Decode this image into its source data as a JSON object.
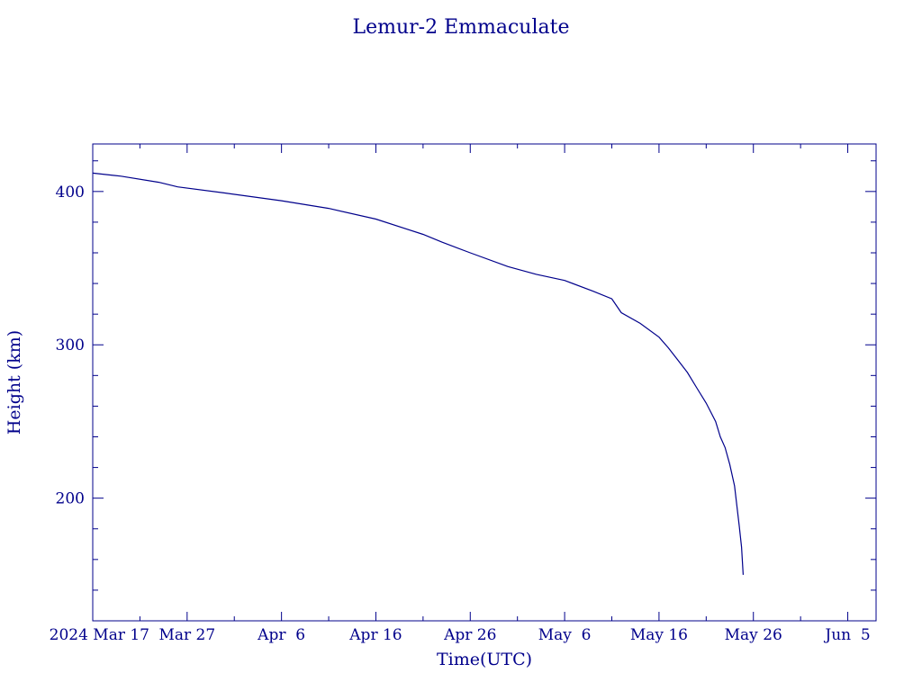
{
  "chart_data": {
    "type": "line",
    "title": "Lemur-2 Emmaculate",
    "xlabel": "Time(UTC)",
    "ylabel": "Height (km)",
    "x_range": [
      "2024-03-17",
      "2024-06-08"
    ],
    "ylim": [
      120,
      431
    ],
    "grid": false,
    "x_ticks": [
      {
        "date": "2024-03-17",
        "label": "2024 Mar 17"
      },
      {
        "date": "2024-03-27",
        "label": "Mar 27"
      },
      {
        "date": "2024-04-06",
        "label": "Apr  6"
      },
      {
        "date": "2024-04-16",
        "label": "Apr 16"
      },
      {
        "date": "2024-04-26",
        "label": "Apr 26"
      },
      {
        "date": "2024-05-06",
        "label": "May  6"
      },
      {
        "date": "2024-05-16",
        "label": "May 16"
      },
      {
        "date": "2024-05-26",
        "label": "May 26"
      },
      {
        "date": "2024-06-05",
        "label": "Jun  5"
      }
    ],
    "y_ticks": [
      {
        "value": 400,
        "label": "400"
      },
      {
        "value": 300,
        "label": "300"
      },
      {
        "value": 200,
        "label": "200"
      }
    ],
    "series": [
      {
        "x": [
          "2024-03-17",
          "2024-03-20",
          "2024-03-24",
          "2024-03-26",
          "2024-03-31",
          "2024-04-06",
          "2024-04-11",
          "2024-04-16",
          "2024-04-21",
          "2024-04-23",
          "2024-04-26",
          "2024-04-30",
          "2024-05-03",
          "2024-05-06",
          "2024-05-09",
          "2024-05-11",
          "2024-05-12",
          "2024-05-14",
          "2024-05-16",
          "2024-05-17",
          "2024-05-18",
          "2024-05-19",
          "2024-05-20",
          "2024-05-21",
          "2024-05-22",
          "2024-05-22T12:00",
          "2024-05-23",
          "2024-05-23T12:00",
          "2024-05-24",
          "2024-05-24T06:00",
          "2024-05-24T12:00",
          "2024-05-24T18:00",
          "2024-05-24T22:00"
        ],
        "y": [
          412,
          410,
          406,
          403,
          399,
          394,
          389,
          382,
          372,
          367,
          360,
          351,
          346,
          342,
          335,
          330,
          321,
          314,
          305,
          298,
          290,
          282,
          272,
          262,
          250,
          240,
          233,
          222,
          208,
          195,
          182,
          168,
          150
        ]
      }
    ]
  }
}
